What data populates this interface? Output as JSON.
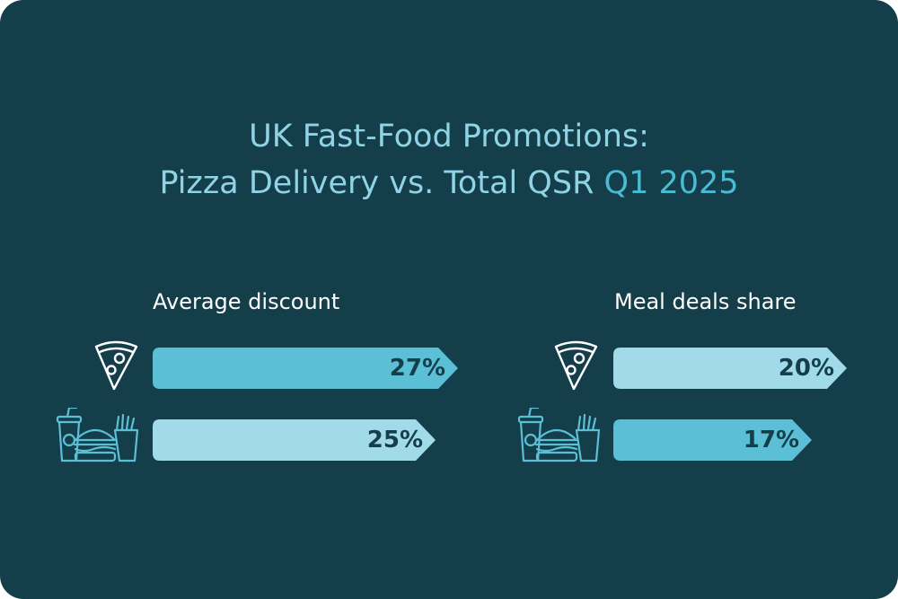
{
  "title": {
    "line1": "UK Fast-Food Promotions:",
    "line2_prefix": "Pizza Delivery vs. Total QSR",
    "line2_accent": "Q1 2025"
  },
  "colors": {
    "background": "#133e4a",
    "bar_dark": "#5bbfd6",
    "bar_light": "#a1dae8",
    "icon_pizza": "#ffffff",
    "icon_qsr": "#5bbfd6",
    "title": "#8fd3e5",
    "title_accent": "#4bbad3"
  },
  "chart_data": [
    {
      "type": "bar",
      "title": "Average discount",
      "unit": "%",
      "categories": [
        "pizza-icon",
        "fast-food-icon"
      ],
      "values": [
        27,
        25
      ],
      "value_labels": [
        "27%",
        "25%"
      ],
      "bar_colors": [
        "#5bbfd6",
        "#a1dae8"
      ]
    },
    {
      "type": "bar",
      "title": "Meal deals share",
      "unit": "%",
      "categories": [
        "pizza-icon",
        "fast-food-icon"
      ],
      "values": [
        20,
        17
      ],
      "value_labels": [
        "20%",
        "17%"
      ],
      "bar_colors": [
        "#a1dae8",
        "#5bbfd6"
      ]
    }
  ]
}
